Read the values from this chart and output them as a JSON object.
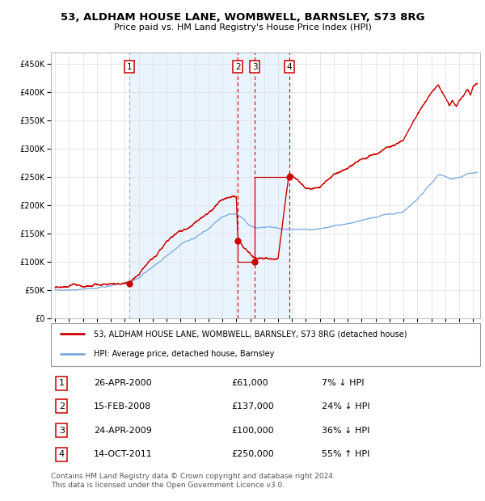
{
  "title": "53, ALDHAM HOUSE LANE, WOMBWELL, BARNSLEY, S73 8RG",
  "subtitle": "Price paid vs. HM Land Registry's House Price Index (HPI)",
  "transactions": [
    {
      "num": 1,
      "date": "26-APR-2000",
      "price": 61000,
      "pct": "7%",
      "dir": "↓",
      "x_year": 2000.32
    },
    {
      "num": 2,
      "date": "15-FEB-2008",
      "price": 137000,
      "pct": "24%",
      "dir": "↓",
      "x_year": 2008.12
    },
    {
      "num": 3,
      "date": "24-APR-2009",
      "price": 100000,
      "pct": "36%",
      "dir": "↓",
      "x_year": 2009.32
    },
    {
      "num": 4,
      "date": "14-OCT-2011",
      "price": 250000,
      "pct": "55%",
      "dir": "↑",
      "x_year": 2011.79
    }
  ],
  "hpi_color": "#7aaadd",
  "price_color": "#cc0000",
  "ylim": [
    0,
    470000
  ],
  "xlim_start": 1994.7,
  "xlim_end": 2025.5,
  "ylabel_ticks": [
    0,
    50000,
    100000,
    150000,
    200000,
    250000,
    300000,
    350000,
    400000,
    450000
  ],
  "legend_line1": "53, ALDHAM HOUSE LANE, WOMBWELL, BARNSLEY, S73 8RG (detached house)",
  "legend_line2": "HPI: Average price, detached house, Barnsley",
  "footer": "Contains HM Land Registry data © Crown copyright and database right 2024.\nThis data is licensed under the Open Government Licence v3.0."
}
